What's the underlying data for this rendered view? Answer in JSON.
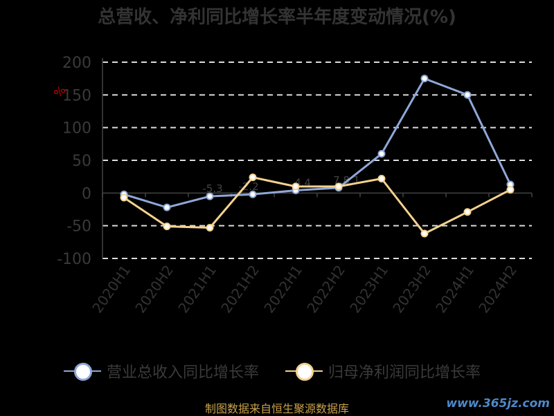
{
  "chart_data": {
    "type": "line",
    "title": "总营收、净利同比增长率半年度变动情况(%)",
    "categories": [
      "2020H1",
      "2020H2",
      "2021H1",
      "2021H2",
      "2022H1",
      "2022H2",
      "2023H1",
      "2023H2",
      "2024H1",
      "2024H2"
    ],
    "yticks": [
      "200",
      "150",
      "100",
      "50",
      "0",
      "-50",
      "-100"
    ],
    "ylim": [
      -100,
      200
    ],
    "unit_label": "%",
    "grid": true,
    "legend_position": "bottom",
    "series": [
      {
        "name": "营业总收入同比增长率",
        "color": "#8fa8d8",
        "values": [
          -2,
          -22,
          -5,
          -2,
          4,
          8,
          60,
          175,
          150,
          13
        ]
      },
      {
        "name": "归母净利润同比增长率",
        "color": "#f5d28f",
        "values": [
          -7,
          -51,
          -53,
          24,
          10,
          10,
          22,
          -62,
          -29,
          5
        ]
      }
    ],
    "data_labels": [
      "-5.3",
      "-2.2",
      "4.4",
      "7.8",
      "1"
    ]
  },
  "source": "制图数据来自恒生聚源数据库",
  "watermark": "www.365jz.com"
}
